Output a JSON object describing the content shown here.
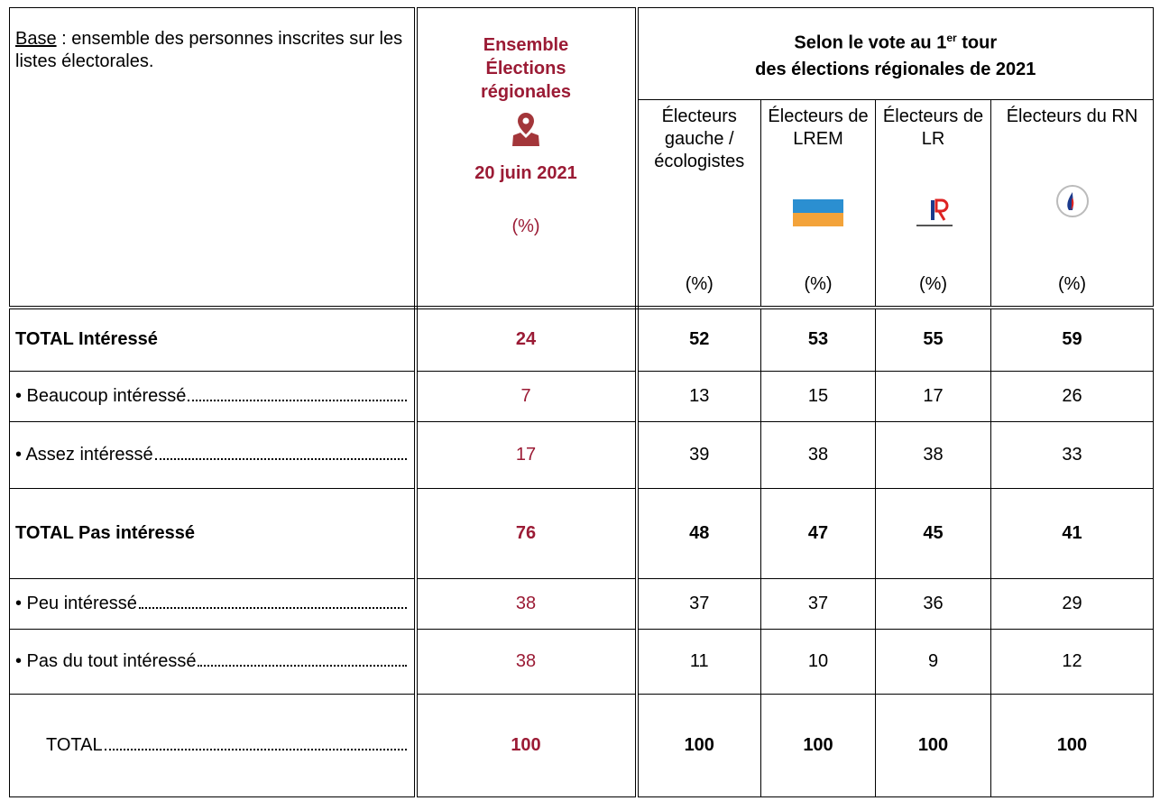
{
  "header": {
    "base_label": "Base",
    "base_text": " : ensemble des personnes inscrites sur les listes électorales.",
    "ensemble": {
      "line1": "Ensemble",
      "line2": "Élections régionales",
      "date": "20 juin 2021",
      "unit": "(%)"
    },
    "group": {
      "prefix": "Selon le vote au 1",
      "sup": "er",
      "suffix": " tour",
      "line2": "des élections régionales de 2021"
    },
    "columns": [
      {
        "label": "Électeurs gauche / écologistes",
        "unit": "(%)"
      },
      {
        "label": "Électeurs de LREM",
        "unit": "(%)"
      },
      {
        "label": "Électeurs de LR",
        "unit": "(%)"
      },
      {
        "label": "Électeurs du RN",
        "unit": "(%)"
      }
    ]
  },
  "rows": [
    {
      "label": "TOTAL Intéressé",
      "values": [
        24,
        52,
        53,
        55,
        59
      ]
    },
    {
      "label": "• Beaucoup intéressé",
      "values": [
        7,
        13,
        15,
        17,
        26
      ]
    },
    {
      "label": "• Assez intéressé",
      "values": [
        17,
        39,
        38,
        38,
        33
      ]
    },
    {
      "label": "TOTAL Pas intéressé",
      "values": [
        76,
        48,
        47,
        45,
        41
      ]
    },
    {
      "label": "• Peu intéressé",
      "values": [
        38,
        37,
        37,
        36,
        29
      ]
    },
    {
      "label": "• Pas du tout intéressé",
      "values": [
        38,
        11,
        10,
        9,
        12
      ]
    },
    {
      "label": "TOTAL",
      "values": [
        100,
        100,
        100,
        100,
        100
      ]
    }
  ]
}
